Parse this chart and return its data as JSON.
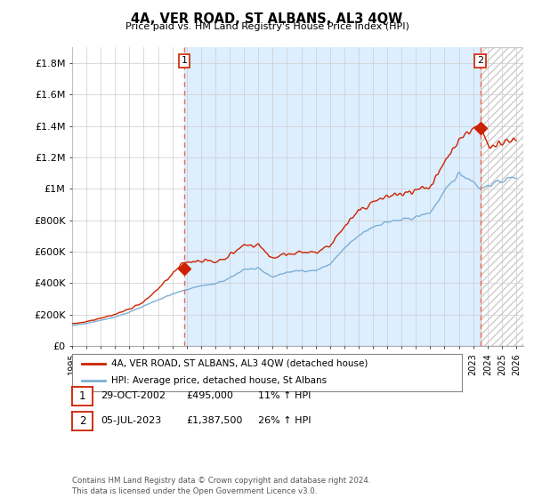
{
  "title": "4A, VER ROAD, ST ALBANS, AL3 4QW",
  "subtitle": "Price paid vs. HM Land Registry's House Price Index (HPI)",
  "ylabel_ticks": [
    "£0",
    "£200K",
    "£400K",
    "£600K",
    "£800K",
    "£1M",
    "£1.2M",
    "£1.4M",
    "£1.6M",
    "£1.8M"
  ],
  "ytick_values": [
    0,
    200000,
    400000,
    600000,
    800000,
    1000000,
    1200000,
    1400000,
    1600000,
    1800000
  ],
  "ylim": [
    0,
    1900000
  ],
  "xlim_start": 1995.0,
  "xlim_end": 2026.5,
  "xtick_years": [
    1995,
    1996,
    1997,
    1998,
    1999,
    2000,
    2001,
    2002,
    2003,
    2004,
    2005,
    2006,
    2007,
    2008,
    2009,
    2010,
    2011,
    2012,
    2013,
    2014,
    2015,
    2016,
    2017,
    2018,
    2019,
    2020,
    2021,
    2022,
    2023,
    2024,
    2025,
    2026
  ],
  "hpi_color": "#7bafd4",
  "price_color": "#cc2200",
  "dashed_vline_color": "#ee6655",
  "shade_color": "#ddeeff",
  "hatch_color": "#cccccc",
  "marker1_x": 2002.83,
  "marker1_y": 495000,
  "marker2_x": 2023.5,
  "marker2_y": 1387500,
  "vline1_x": 2002.83,
  "vline2_x": 2023.5,
  "legend_label_price": "4A, VER ROAD, ST ALBANS, AL3 4QW (detached house)",
  "legend_label_hpi": "HPI: Average price, detached house, St Albans",
  "table_row1_num": "1",
  "table_row1_date": "29-OCT-2002",
  "table_row1_price": "£495,000",
  "table_row1_hpi": "11% ↑ HPI",
  "table_row2_num": "2",
  "table_row2_date": "05-JUL-2023",
  "table_row2_price": "£1,387,500",
  "table_row2_hpi": "26% ↑ HPI",
  "footer": "Contains HM Land Registry data © Crown copyright and database right 2024.\nThis data is licensed under the Open Government Licence v3.0.",
  "background_color": "#ffffff",
  "grid_color": "#cccccc"
}
